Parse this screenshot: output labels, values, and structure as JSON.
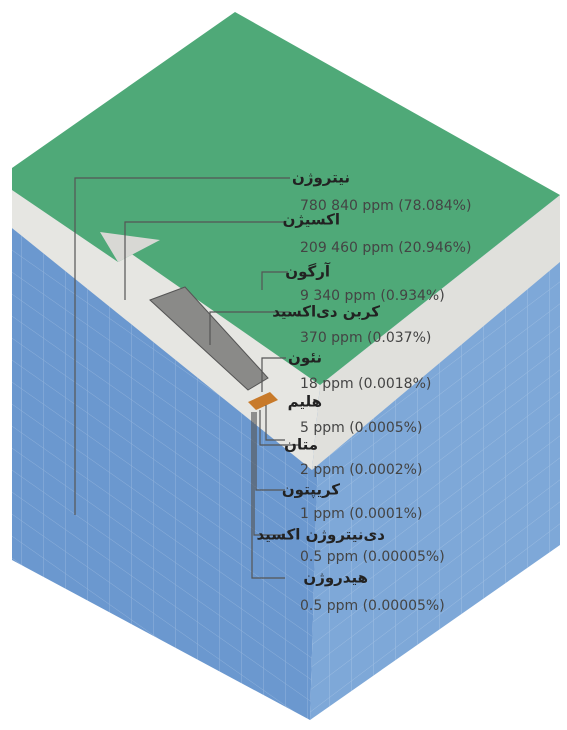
{
  "items": [
    {
      "name": "نیتروژن",
      "amount": "780 840 ppm (78.084%)"
    },
    {
      "name": "اکسیژن",
      "amount": "209 460 ppm (20.946%)"
    },
    {
      "name": "آرگون",
      "amount": "9 340 ppm (0.934%)"
    },
    {
      "name": "کربن دی‌اکسید",
      "amount": "370 ppm (0.037%)"
    },
    {
      "name": "نئون",
      "amount": "18 ppm (0.0018%)"
    },
    {
      "name": "هلیم",
      "amount": "5 ppm (0.0005%)"
    },
    {
      "name": "متان",
      "amount": "2 ppm (0.0002%)"
    },
    {
      "name": "کریپتون",
      "amount": "1 ppm (0.0001%)"
    },
    {
      "name": "دی‌نیتروژن اکسید",
      "amount": "0.5 ppm (0.00005%)"
    },
    {
      "name": "هیدروژن",
      "amount": "0.5 ppm (0.00005%)"
    }
  ]
}
